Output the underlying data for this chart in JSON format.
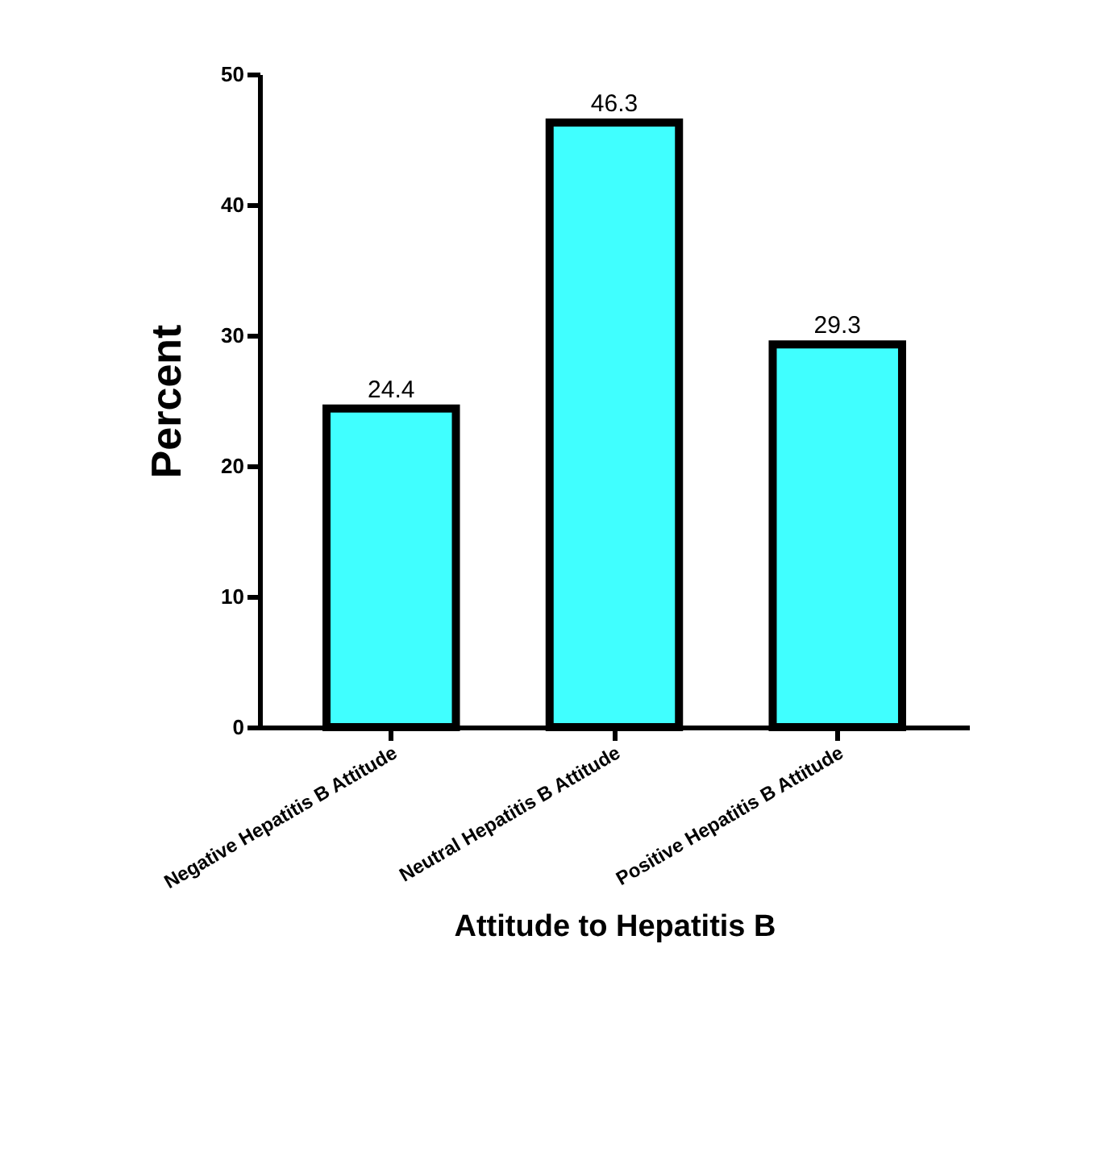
{
  "chart_data": {
    "type": "bar",
    "xlabel": "Attitude to Hepatitis B",
    "ylabel": "Percent",
    "categories": [
      "Negative Hepatitis B Attitude",
      "Neutral Hepatitis B Attitude",
      "Positive Hepatitis B Attitude"
    ],
    "values": [
      24.4,
      46.3,
      29.3
    ],
    "color": "#40ffff",
    "ylim": [
      0,
      50
    ],
    "yticks": [
      0,
      10,
      20,
      30,
      40,
      50
    ],
    "grid": false,
    "data_labels": true
  }
}
